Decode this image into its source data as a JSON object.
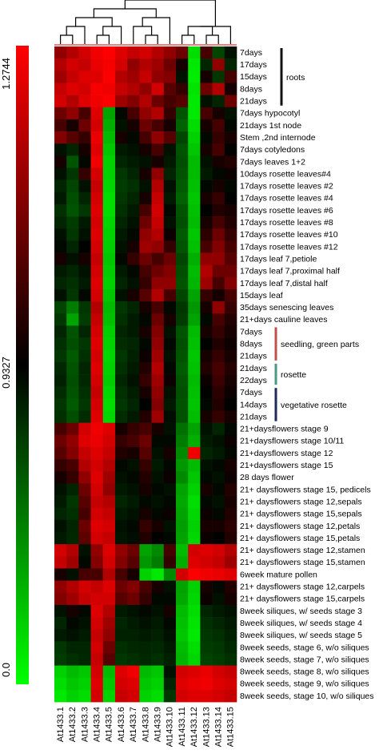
{
  "chart_data": {
    "type": "heatmap",
    "colorscale": {
      "max_label": "1.2744",
      "mid_label": "0.9327",
      "min_label": "0.0",
      "high_color": "#ff0000",
      "mid_color": "#000000",
      "low_color": "#00ff00",
      "range": [
        0.0,
        1.2744
      ]
    },
    "columns": [
      "At1433.1",
      "At1433.2",
      "At1433.3",
      "At1433.4",
      "At1433.5",
      "At1433.6",
      "At1433.7",
      "At1433.8",
      "At1433.9",
      "At1433.10",
      "At1433.11",
      "At1433.12",
      "At1433.13",
      "At1433.14",
      "At1433.15"
    ],
    "rows": [
      "7days",
      "17days",
      "15days",
      "8days",
      "21days",
      "7days hypocotyl",
      "21days 1st node",
      "Stem ,2nd internode",
      "7days cotyledons",
      "7days leaves 1+2",
      "10days rosette leaves#4",
      "17days rosette leaves #2",
      "17days rosette leaves #4",
      "17days rosette leaves #6",
      "17days rosette leaves #8",
      "17days rosette leaves #10",
      "17days rosette leaves #12",
      "17days leaf 7,petiole",
      "17days leaf 7,proximal half",
      "17days leaf 7,distal half",
      "15days leaf",
      "35days senescing leaves",
      "21+days cauline leaves",
      "7days",
      "8days",
      "21days",
      "21days",
      "22days",
      "7days",
      "14days",
      "21days",
      "21+daysflowers stage 9",
      "21+daysflowers stage 10/11",
      "21+daysflowers stage 12",
      "21+daysflowers stage 15",
      "28 days flower",
      "21+ daysflowers stage 15, pedicels",
      "21+ daysflowers stage 12,sepals",
      "21+ daysflowers stage 15,sepals",
      "21+ daysflowers stage 12,petals",
      "21+ daysflowers stage 15,petals",
      "21+ daysflowers stage 12,stamen",
      "21+ daysflowers stage 15,stamen",
      "6week mature pollen",
      "21+ daysflowers stage 12,carpels",
      "21+ daysflowers stage 15,carpels",
      "8week siliques, w/ seeds stage 3",
      "8week siliques, w/ seeds stage 4",
      "8week siliques, w/ seeds stage 5",
      "8week seeds, stage 6, w/o siliques",
      "8week seeds, stage 7, w/o siliques",
      "8week seeds, stage 8, w/o siliques",
      "8week seeds, stage 9, w/o siliques",
      "8week seeds, stage 10, w/o siliques"
    ],
    "groups": [
      {
        "label": "roots",
        "rows": [
          0,
          4
        ],
        "color": "#111111"
      },
      {
        "label": "seedling, green parts",
        "rows": [
          23,
          25
        ],
        "color": "#c0504d"
      },
      {
        "label": "rosette",
        "rows": [
          26,
          27
        ],
        "color": "#4a9a80"
      },
      {
        "label": "vegetative rosette",
        "rows": [
          28,
          30
        ],
        "color": "#1f2a5c"
      }
    ],
    "dendrogram_merges": [
      [
        0,
        1,
        1
      ],
      [
        3,
        4,
        1
      ],
      [
        7,
        8,
        1
      ],
      [
        10,
        11,
        1
      ],
      [
        12,
        13,
        1
      ],
      [
        1,
        2,
        2
      ],
      [
        4,
        5,
        2
      ],
      [
        6,
        8,
        2
      ],
      [
        11,
        13,
        2
      ],
      [
        12,
        14,
        2
      ],
      [
        2,
        5,
        3
      ],
      [
        6,
        9,
        3
      ],
      [
        13,
        14,
        3
      ],
      [
        5,
        9,
        4
      ],
      [
        9,
        14,
        5
      ]
    ],
    "values": [
      [
        1.1,
        1.15,
        1.2,
        1.25,
        1.27,
        1.22,
        1.18,
        1.2,
        1.15,
        1.1,
        1.05,
        0.15,
        1.0,
        0.75,
        0.9
      ],
      [
        1.15,
        1.2,
        1.18,
        1.24,
        1.26,
        1.2,
        1.1,
        1.15,
        1.12,
        1.05,
        0.95,
        0.1,
        0.85,
        1.1,
        0.85
      ],
      [
        1.12,
        1.18,
        1.22,
        1.22,
        1.27,
        1.15,
        1.12,
        1.18,
        1.1,
        1.08,
        0.9,
        0.08,
        0.95,
        0.8,
        1.0
      ],
      [
        1.18,
        1.22,
        1.2,
        1.26,
        1.25,
        1.18,
        1.15,
        1.1,
        1.2,
        1.02,
        0.98,
        0.12,
        1.05,
        1.15,
        0.95
      ],
      [
        1.2,
        1.15,
        1.22,
        1.25,
        1.27,
        1.12,
        1.08,
        1.15,
        1.05,
        1.0,
        1.02,
        0.1,
        0.9,
        0.85,
        1.05
      ],
      [
        1.05,
        1.1,
        1.0,
        1.22,
        0.4,
        0.92,
        1.0,
        1.1,
        1.15,
        0.98,
        0.7,
        0.1,
        1.0,
        0.95,
        0.9
      ],
      [
        1.0,
        0.95,
        1.05,
        1.2,
        0.35,
        0.9,
        0.95,
        1.05,
        1.0,
        0.95,
        0.65,
        0.15,
        0.95,
        1.0,
        0.92
      ],
      [
        1.08,
        1.02,
        0.98,
        1.24,
        0.3,
        0.95,
        0.92,
        1.0,
        1.1,
        1.02,
        0.75,
        0.2,
        0.92,
        0.98,
        0.95
      ],
      [
        0.9,
        0.85,
        0.95,
        1.22,
        0.25,
        0.88,
        0.9,
        0.95,
        1.0,
        0.9,
        0.7,
        0.25,
        0.95,
        1.0,
        0.93
      ],
      [
        0.95,
        0.7,
        0.92,
        1.25,
        0.2,
        0.85,
        0.88,
        0.9,
        0.95,
        0.88,
        0.72,
        0.3,
        0.9,
        0.95,
        0.96
      ],
      [
        0.9,
        0.8,
        0.98,
        1.2,
        0.2,
        0.8,
        0.85,
        0.95,
        1.1,
        0.85,
        0.7,
        0.3,
        0.88,
        0.92,
        0.94
      ],
      [
        0.85,
        0.75,
        0.9,
        1.18,
        0.18,
        0.78,
        0.82,
        0.9,
        1.15,
        0.9,
        0.68,
        0.28,
        0.92,
        0.95,
        0.92
      ],
      [
        0.88,
        0.72,
        0.85,
        1.2,
        0.15,
        0.8,
        0.85,
        0.95,
        1.18,
        0.88,
        0.65,
        0.25,
        0.95,
        0.98,
        0.93
      ],
      [
        0.82,
        0.7,
        0.8,
        1.22,
        0.15,
        0.82,
        0.88,
        1.0,
        1.2,
        0.92,
        0.7,
        0.28,
        0.93,
        0.96,
        0.95
      ],
      [
        0.85,
        0.78,
        0.88,
        1.2,
        0.18,
        0.85,
        0.9,
        1.05,
        1.18,
        0.9,
        0.72,
        0.3,
        0.95,
        1.0,
        0.96
      ],
      [
        0.9,
        0.8,
        0.9,
        1.22,
        0.2,
        0.88,
        0.92,
        1.1,
        1.15,
        0.94,
        0.68,
        0.25,
        0.97,
        1.05,
        0.98
      ],
      [
        0.92,
        0.85,
        0.93,
        1.2,
        0.22,
        0.9,
        0.95,
        1.12,
        1.1,
        0.98,
        0.7,
        0.28,
        1.0,
        1.08,
        1.0
      ],
      [
        0.95,
        0.9,
        0.95,
        1.18,
        0.25,
        0.92,
        0.98,
        1.05,
        1.0,
        1.05,
        0.75,
        0.35,
        1.1,
        1.1,
        1.02
      ],
      [
        0.88,
        0.85,
        0.9,
        1.2,
        0.22,
        0.88,
        0.92,
        1.0,
        1.05,
        1.08,
        0.72,
        0.3,
        1.15,
        1.05,
        1.05
      ],
      [
        0.85,
        0.82,
        0.88,
        1.22,
        0.2,
        0.85,
        0.9,
        0.98,
        1.1,
        1.1,
        0.7,
        0.32,
        1.12,
        1.0,
        1.08
      ],
      [
        0.9,
        0.8,
        0.92,
        1.2,
        0.25,
        0.9,
        0.95,
        1.02,
        1.15,
        1.0,
        0.75,
        0.4,
        0.98,
        0.95,
        1.0
      ],
      [
        0.75,
        0.55,
        0.8,
        1.15,
        0.3,
        0.8,
        0.85,
        0.95,
        1.0,
        0.92,
        0.8,
        0.45,
        0.95,
        1.1,
        0.98
      ],
      [
        0.8,
        0.4,
        0.78,
        1.18,
        0.28,
        0.82,
        0.88,
        0.92,
        1.05,
        0.95,
        0.78,
        0.4,
        0.92,
        1.0,
        0.96
      ],
      [
        0.85,
        0.7,
        0.85,
        1.2,
        0.22,
        0.85,
        0.88,
        0.95,
        1.08,
        0.9,
        0.7,
        0.3,
        0.95,
        0.98,
        0.95
      ],
      [
        0.82,
        0.72,
        0.8,
        1.22,
        0.2,
        0.83,
        0.85,
        0.92,
        1.1,
        0.92,
        0.72,
        0.28,
        0.93,
        0.96,
        0.94
      ],
      [
        0.8,
        0.68,
        0.82,
        1.2,
        0.18,
        0.8,
        0.86,
        0.94,
        1.12,
        0.9,
        0.7,
        0.25,
        0.95,
        0.98,
        0.95
      ],
      [
        0.84,
        0.7,
        0.85,
        1.22,
        0.2,
        0.82,
        0.88,
        0.96,
        1.15,
        0.92,
        0.68,
        0.27,
        0.96,
        1.0,
        0.96
      ],
      [
        0.86,
        0.72,
        0.84,
        1.2,
        0.22,
        0.85,
        0.9,
        0.98,
        1.12,
        0.94,
        0.7,
        0.3,
        0.94,
        0.99,
        0.95
      ],
      [
        0.83,
        0.7,
        0.82,
        1.18,
        0.18,
        0.82,
        0.87,
        0.95,
        1.1,
        0.9,
        0.72,
        0.28,
        0.93,
        0.97,
        0.94
      ],
      [
        0.8,
        0.68,
        0.8,
        1.2,
        0.15,
        0.8,
        0.85,
        0.93,
        1.08,
        0.88,
        0.7,
        0.26,
        0.92,
        0.96,
        0.93
      ],
      [
        0.82,
        0.72,
        0.83,
        1.22,
        0.18,
        0.83,
        0.88,
        0.96,
        1.12,
        0.91,
        0.71,
        0.29,
        0.95,
        0.98,
        0.95
      ],
      [
        1.0,
        1.05,
        1.2,
        1.25,
        1.22,
        0.95,
        0.98,
        1.0,
        0.95,
        0.9,
        0.6,
        0.4,
        0.9,
        0.85,
        0.92
      ],
      [
        1.05,
        1.1,
        1.22,
        1.24,
        1.2,
        0.98,
        1.0,
        1.05,
        0.92,
        0.92,
        0.55,
        0.35,
        0.88,
        0.9,
        0.94
      ],
      [
        1.02,
        1.08,
        1.18,
        1.22,
        1.18,
        0.96,
        0.95,
        1.02,
        0.9,
        0.95,
        0.5,
        1.25,
        0.85,
        0.88,
        0.92
      ],
      [
        0.98,
        1.0,
        1.15,
        1.2,
        1.15,
        0.92,
        0.9,
        0.98,
        0.88,
        0.92,
        0.45,
        0.3,
        0.9,
        0.92,
        0.95
      ],
      [
        0.95,
        0.98,
        1.1,
        1.22,
        1.12,
        0.9,
        0.92,
        0.96,
        0.9,
        0.94,
        0.5,
        0.25,
        0.92,
        0.9,
        0.94
      ],
      [
        0.9,
        0.85,
        1.05,
        1.2,
        1.1,
        0.88,
        0.9,
        0.95,
        0.92,
        0.9,
        0.4,
        0.2,
        0.95,
        0.92,
        0.96
      ],
      [
        0.88,
        0.8,
        1.02,
        1.18,
        1.15,
        0.85,
        0.88,
        0.92,
        0.9,
        0.92,
        0.38,
        0.15,
        0.92,
        0.9,
        0.95
      ],
      [
        0.85,
        0.82,
        1.0,
        1.2,
        1.18,
        0.88,
        0.9,
        0.95,
        0.92,
        0.94,
        0.4,
        0.18,
        0.94,
        0.92,
        0.96
      ],
      [
        0.9,
        0.85,
        1.05,
        1.22,
        1.2,
        0.9,
        0.92,
        0.98,
        0.95,
        0.9,
        0.42,
        0.2,
        0.95,
        0.95,
        0.97
      ],
      [
        0.88,
        0.84,
        1.03,
        1.2,
        1.18,
        0.89,
        0.91,
        0.96,
        0.93,
        0.92,
        0.4,
        0.18,
        0.94,
        0.93,
        0.96
      ],
      [
        1.2,
        1.15,
        0.9,
        1.1,
        1.22,
        1.1,
        1.05,
        0.4,
        0.5,
        1.0,
        0.3,
        1.2,
        1.22,
        1.2,
        1.15
      ],
      [
        1.18,
        1.12,
        0.92,
        1.08,
        1.2,
        1.08,
        1.02,
        0.45,
        0.55,
        0.98,
        0.35,
        1.22,
        1.2,
        1.18,
        1.12
      ],
      [
        0.95,
        0.9,
        1.0,
        1.0,
        1.15,
        1.0,
        0.95,
        0.2,
        0.1,
        0.5,
        1.2,
        1.27,
        1.25,
        1.24,
        1.22
      ],
      [
        1.1,
        1.15,
        1.2,
        1.18,
        1.22,
        1.05,
        1.08,
        1.0,
        0.95,
        0.9,
        0.4,
        0.2,
        0.95,
        0.92,
        0.96
      ],
      [
        1.08,
        1.12,
        1.18,
        1.2,
        1.2,
        1.02,
        1.05,
        0.98,
        0.92,
        0.92,
        0.38,
        0.18,
        0.94,
        0.9,
        0.95
      ],
      [
        0.9,
        0.95,
        0.92,
        1.22,
        1.15,
        0.88,
        0.9,
        0.92,
        0.9,
        0.95,
        0.3,
        0.15,
        0.85,
        0.88,
        0.9
      ],
      [
        0.85,
        0.92,
        0.9,
        1.2,
        1.12,
        0.85,
        0.88,
        0.9,
        0.88,
        0.92,
        0.28,
        0.12,
        0.82,
        0.85,
        0.88
      ],
      [
        0.88,
        0.9,
        0.88,
        1.18,
        1.1,
        0.86,
        0.86,
        0.88,
        0.86,
        0.9,
        0.25,
        0.1,
        0.8,
        0.82,
        0.86
      ],
      [
        0.8,
        0.85,
        0.85,
        1.2,
        1.05,
        0.82,
        0.84,
        0.85,
        0.84,
        0.88,
        0.3,
        0.15,
        0.78,
        0.8,
        0.84
      ],
      [
        0.78,
        0.82,
        0.84,
        1.18,
        1.02,
        0.8,
        0.82,
        0.84,
        0.82,
        0.86,
        0.32,
        0.18,
        0.76,
        0.78,
        0.82
      ],
      [
        0.2,
        0.3,
        0.25,
        1.2,
        0.3,
        1.22,
        1.25,
        0.3,
        0.25,
        0.9,
        1.2,
        1.22,
        1.24,
        1.2,
        1.18
      ],
      [
        0.15,
        0.25,
        0.2,
        1.22,
        0.25,
        1.2,
        1.22,
        0.25,
        0.2,
        0.85,
        1.22,
        1.24,
        1.25,
        1.22,
        1.2
      ],
      [
        0.1,
        0.2,
        0.15,
        1.2,
        0.2,
        1.18,
        1.2,
        0.2,
        0.15,
        0.8,
        1.2,
        1.22,
        1.22,
        1.2,
        1.18
      ]
    ]
  }
}
